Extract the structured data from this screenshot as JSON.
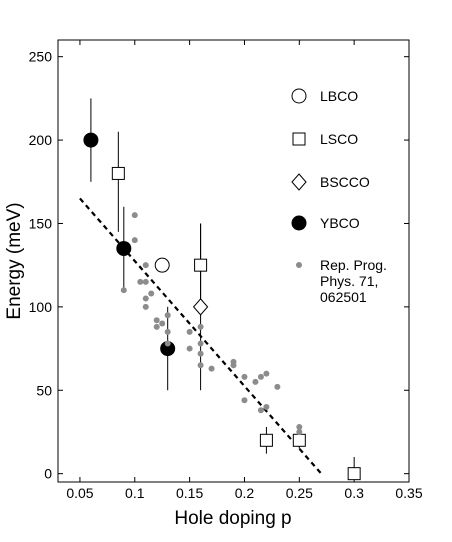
{
  "chart_data": {
    "type": "scatter",
    "title": "",
    "xlabel": "Hole doping p",
    "ylabel": "Energy (meV)",
    "xlim": [
      0.03,
      0.35
    ],
    "ylim": [
      -5,
      260
    ],
    "xticks": [
      0.05,
      0.1,
      0.15,
      0.2,
      0.25,
      0.3,
      0.35
    ],
    "xtick_labels": [
      "0.05",
      "0.1",
      "0.15",
      "0.2",
      "0.25",
      "0.3",
      "0.35"
    ],
    "yticks": [
      0,
      50,
      100,
      150,
      200,
      250
    ],
    "ytick_labels": [
      "0",
      "50",
      "100",
      "150",
      "200",
      "250"
    ],
    "grid": false,
    "legend_position": "right",
    "series": [
      {
        "name": "LBCO",
        "marker": "open-circle",
        "points": [
          {
            "x": 0.125,
            "y": 125
          }
        ]
      },
      {
        "name": "LSCO",
        "marker": "open-square",
        "points": [
          {
            "x": 0.085,
            "y": 180,
            "err_low": 145,
            "err_high": 205
          },
          {
            "x": 0.16,
            "y": 125,
            "err_low": 105,
            "err_high": 150
          },
          {
            "x": 0.22,
            "y": 20,
            "err_low": 12,
            "err_high": 28
          },
          {
            "x": 0.25,
            "y": 20,
            "err_low": 15,
            "err_high": 25
          },
          {
            "x": 0.3,
            "y": 0,
            "err_low": 0,
            "err_high": 10
          }
        ]
      },
      {
        "name": "BSCCO",
        "marker": "open-diamond",
        "points": [
          {
            "x": 0.16,
            "y": 100,
            "err_low": 50,
            "err_high": 150
          }
        ]
      },
      {
        "name": "YBCO",
        "marker": "filled-circle",
        "points": [
          {
            "x": 0.06,
            "y": 200,
            "err_low": 175,
            "err_high": 225
          },
          {
            "x": 0.09,
            "y": 135,
            "err_low": 110,
            "err_high": 160
          },
          {
            "x": 0.13,
            "y": 75,
            "err_low": 50,
            "err_high": 100
          }
        ]
      },
      {
        "name": "Rep. Prog. Phys. 71, 062501",
        "legend_lines": [
          "Rep. Prog.",
          "Phys. 71,",
          "062501"
        ],
        "marker": "small-gray-dot",
        "color": "#8c8c8c",
        "points": [
          {
            "x": 0.09,
            "y": 110
          },
          {
            "x": 0.1,
            "y": 155
          },
          {
            "x": 0.1,
            "y": 140
          },
          {
            "x": 0.105,
            "y": 115
          },
          {
            "x": 0.11,
            "y": 125
          },
          {
            "x": 0.11,
            "y": 115
          },
          {
            "x": 0.11,
            "y": 105
          },
          {
            "x": 0.11,
            "y": 100
          },
          {
            "x": 0.115,
            "y": 108
          },
          {
            "x": 0.12,
            "y": 92
          },
          {
            "x": 0.12,
            "y": 88
          },
          {
            "x": 0.125,
            "y": 90
          },
          {
            "x": 0.13,
            "y": 95
          },
          {
            "x": 0.13,
            "y": 85
          },
          {
            "x": 0.13,
            "y": 78
          },
          {
            "x": 0.15,
            "y": 85
          },
          {
            "x": 0.15,
            "y": 75
          },
          {
            "x": 0.16,
            "y": 88
          },
          {
            "x": 0.16,
            "y": 78
          },
          {
            "x": 0.16,
            "y": 72
          },
          {
            "x": 0.16,
            "y": 65
          },
          {
            "x": 0.17,
            "y": 63
          },
          {
            "x": 0.19,
            "y": 67
          },
          {
            "x": 0.19,
            "y": 65
          },
          {
            "x": 0.2,
            "y": 58
          },
          {
            "x": 0.2,
            "y": 44
          },
          {
            "x": 0.21,
            "y": 55
          },
          {
            "x": 0.215,
            "y": 58
          },
          {
            "x": 0.215,
            "y": 38
          },
          {
            "x": 0.22,
            "y": 60
          },
          {
            "x": 0.22,
            "y": 40
          },
          {
            "x": 0.23,
            "y": 52
          },
          {
            "x": 0.25,
            "y": 28
          },
          {
            "x": 0.25,
            "y": 25
          }
        ]
      }
    ],
    "fit_line": {
      "style": "dashed",
      "points": [
        {
          "x": 0.05,
          "y": 165
        },
        {
          "x": 0.27,
          "y": 0
        }
      ]
    }
  }
}
